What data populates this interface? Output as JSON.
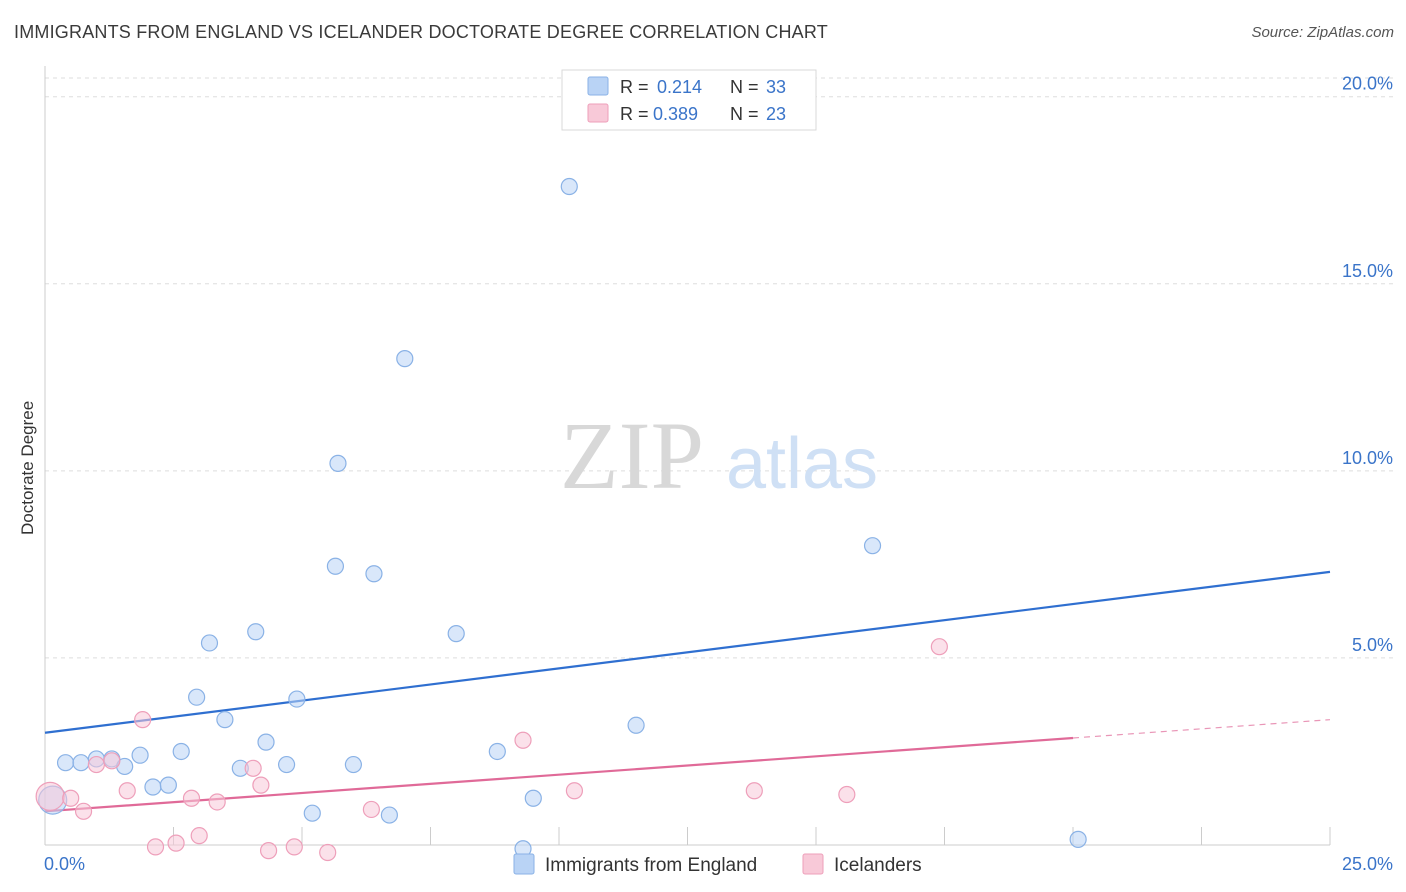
{
  "title": "IMMIGRANTS FROM ENGLAND VS ICELANDER DOCTORATE DEGREE CORRELATION CHART",
  "source": "Source: ZipAtlas.com",
  "watermark": {
    "zip": "ZIP",
    "atlas": "atlas"
  },
  "colors": {
    "blue_fill": "#b9d3f5",
    "blue_stroke": "#8ab2e6",
    "blue_line": "#2f6fd0",
    "pink_fill": "#f8c9d8",
    "pink_stroke": "#ee9fba",
    "pink_line": "#e06a98",
    "value_text": "#3a74c9",
    "grid": "#dddddd"
  },
  "legend_top": [
    {
      "r_label": "R =",
      "r_value": "0.214",
      "n_label": "N =",
      "n_value": "33"
    },
    {
      "r_label": "R =",
      "r_value": "0.389",
      "n_label": "N =",
      "n_value": "23"
    }
  ],
  "chart_data": {
    "type": "scatter",
    "title": "IMMIGRANTS FROM ENGLAND VS ICELANDER DOCTORATE DEGREE CORRELATION CHART",
    "xlabel": "",
    "ylabel": "Doctorate Degree",
    "xlim": [
      0,
      25
    ],
    "ylim": [
      0,
      20.5
    ],
    "x_tick_labels": [
      "0.0%",
      "25.0%"
    ],
    "y_ticks": [
      5,
      10,
      15,
      20
    ],
    "y_tick_labels": [
      "5.0%",
      "10.0%",
      "15.0%",
      "20.0%"
    ],
    "grid": true,
    "legend_position": "bottom",
    "series": [
      {
        "name": "Immigrants from England",
        "color": "blue",
        "trend": {
          "x": [
            0,
            25
          ],
          "y": [
            3.0,
            7.3
          ],
          "dashed_from": null
        },
        "points": [
          {
            "x": 0.15,
            "y": 1.2,
            "big": true
          },
          {
            "x": 0.4,
            "y": 2.2
          },
          {
            "x": 0.7,
            "y": 2.2
          },
          {
            "x": 1.0,
            "y": 2.3
          },
          {
            "x": 1.3,
            "y": 2.3
          },
          {
            "x": 1.55,
            "y": 2.1
          },
          {
            "x": 1.85,
            "y": 2.4
          },
          {
            "x": 2.1,
            "y": 1.55
          },
          {
            "x": 2.4,
            "y": 1.6
          },
          {
            "x": 2.65,
            "y": 2.5
          },
          {
            "x": 2.95,
            "y": 3.95
          },
          {
            "x": 3.2,
            "y": 5.4
          },
          {
            "x": 3.5,
            "y": 3.35
          },
          {
            "x": 3.8,
            "y": 2.05
          },
          {
            "x": 4.1,
            "y": 5.7
          },
          {
            "x": 4.3,
            "y": 2.75
          },
          {
            "x": 4.7,
            "y": 2.15
          },
          {
            "x": 4.9,
            "y": 3.9
          },
          {
            "x": 5.2,
            "y": 0.85
          },
          {
            "x": 5.65,
            "y": 7.45
          },
          {
            "x": 5.7,
            "y": 10.2
          },
          {
            "x": 6.0,
            "y": 2.15
          },
          {
            "x": 6.4,
            "y": 7.25
          },
          {
            "x": 6.7,
            "y": 0.8
          },
          {
            "x": 7.0,
            "y": 13.0
          },
          {
            "x": 8.0,
            "y": 5.65
          },
          {
            "x": 8.8,
            "y": 2.5
          },
          {
            "x": 9.3,
            "y": -0.1
          },
          {
            "x": 9.5,
            "y": 1.25
          },
          {
            "x": 10.2,
            "y": 17.6
          },
          {
            "x": 11.5,
            "y": 3.2
          },
          {
            "x": 16.1,
            "y": 8.0
          },
          {
            "x": 20.1,
            "y": 0.15
          }
        ]
      },
      {
        "name": "Icelanders",
        "color": "pink",
        "trend": {
          "x": [
            0,
            25
          ],
          "y": [
            0.9,
            3.35
          ],
          "dashed_from": 20.0
        },
        "points": [
          {
            "x": 0.1,
            "y": 1.3,
            "big": true
          },
          {
            "x": 0.5,
            "y": 1.25
          },
          {
            "x": 0.75,
            "y": 0.9
          },
          {
            "x": 1.0,
            "y": 2.15
          },
          {
            "x": 1.3,
            "y": 2.25
          },
          {
            "x": 1.6,
            "y": 1.45
          },
          {
            "x": 1.9,
            "y": 3.35
          },
          {
            "x": 2.15,
            "y": -0.05
          },
          {
            "x": 2.55,
            "y": 0.05
          },
          {
            "x": 2.85,
            "y": 1.25
          },
          {
            "x": 3.0,
            "y": 0.25
          },
          {
            "x": 3.35,
            "y": 1.15
          },
          {
            "x": 4.05,
            "y": 2.05
          },
          {
            "x": 4.2,
            "y": 1.6
          },
          {
            "x": 4.35,
            "y": -0.15
          },
          {
            "x": 4.85,
            "y": -0.05
          },
          {
            "x": 5.5,
            "y": -0.2
          },
          {
            "x": 6.35,
            "y": 0.95
          },
          {
            "x": 9.3,
            "y": 2.8
          },
          {
            "x": 10.3,
            "y": 1.45
          },
          {
            "x": 13.8,
            "y": 1.45
          },
          {
            "x": 15.6,
            "y": 1.35
          },
          {
            "x": 17.4,
            "y": 5.3
          }
        ]
      }
    ]
  }
}
